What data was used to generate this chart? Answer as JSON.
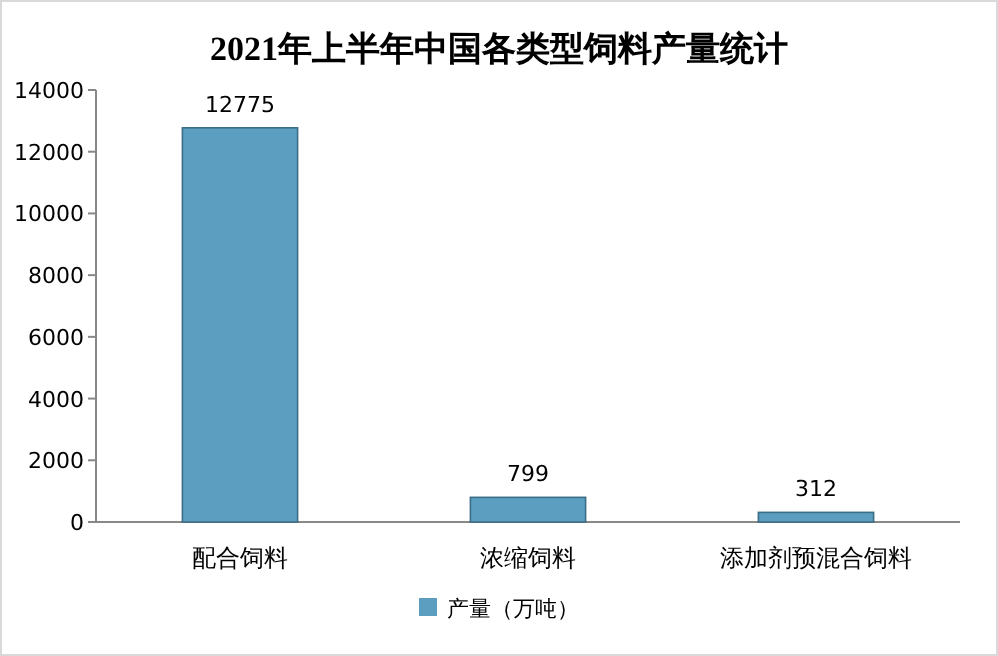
{
  "chart_data": {
    "type": "bar",
    "title": "2021年上半年中国各类型饲料产量统计",
    "categories": [
      "配合饲料",
      "浓缩饲料",
      "添加剂预混合饲料"
    ],
    "series": [
      {
        "name": "产量（万吨）",
        "color": "#5b9ec0",
        "values": [
          12775,
          799,
          312
        ]
      }
    ],
    "ylim": [
      0,
      14000
    ],
    "yticks": [
      0,
      2000,
      4000,
      6000,
      8000,
      10000,
      12000,
      14000
    ],
    "data_labels": true,
    "legend": "bottom",
    "grid": false
  }
}
